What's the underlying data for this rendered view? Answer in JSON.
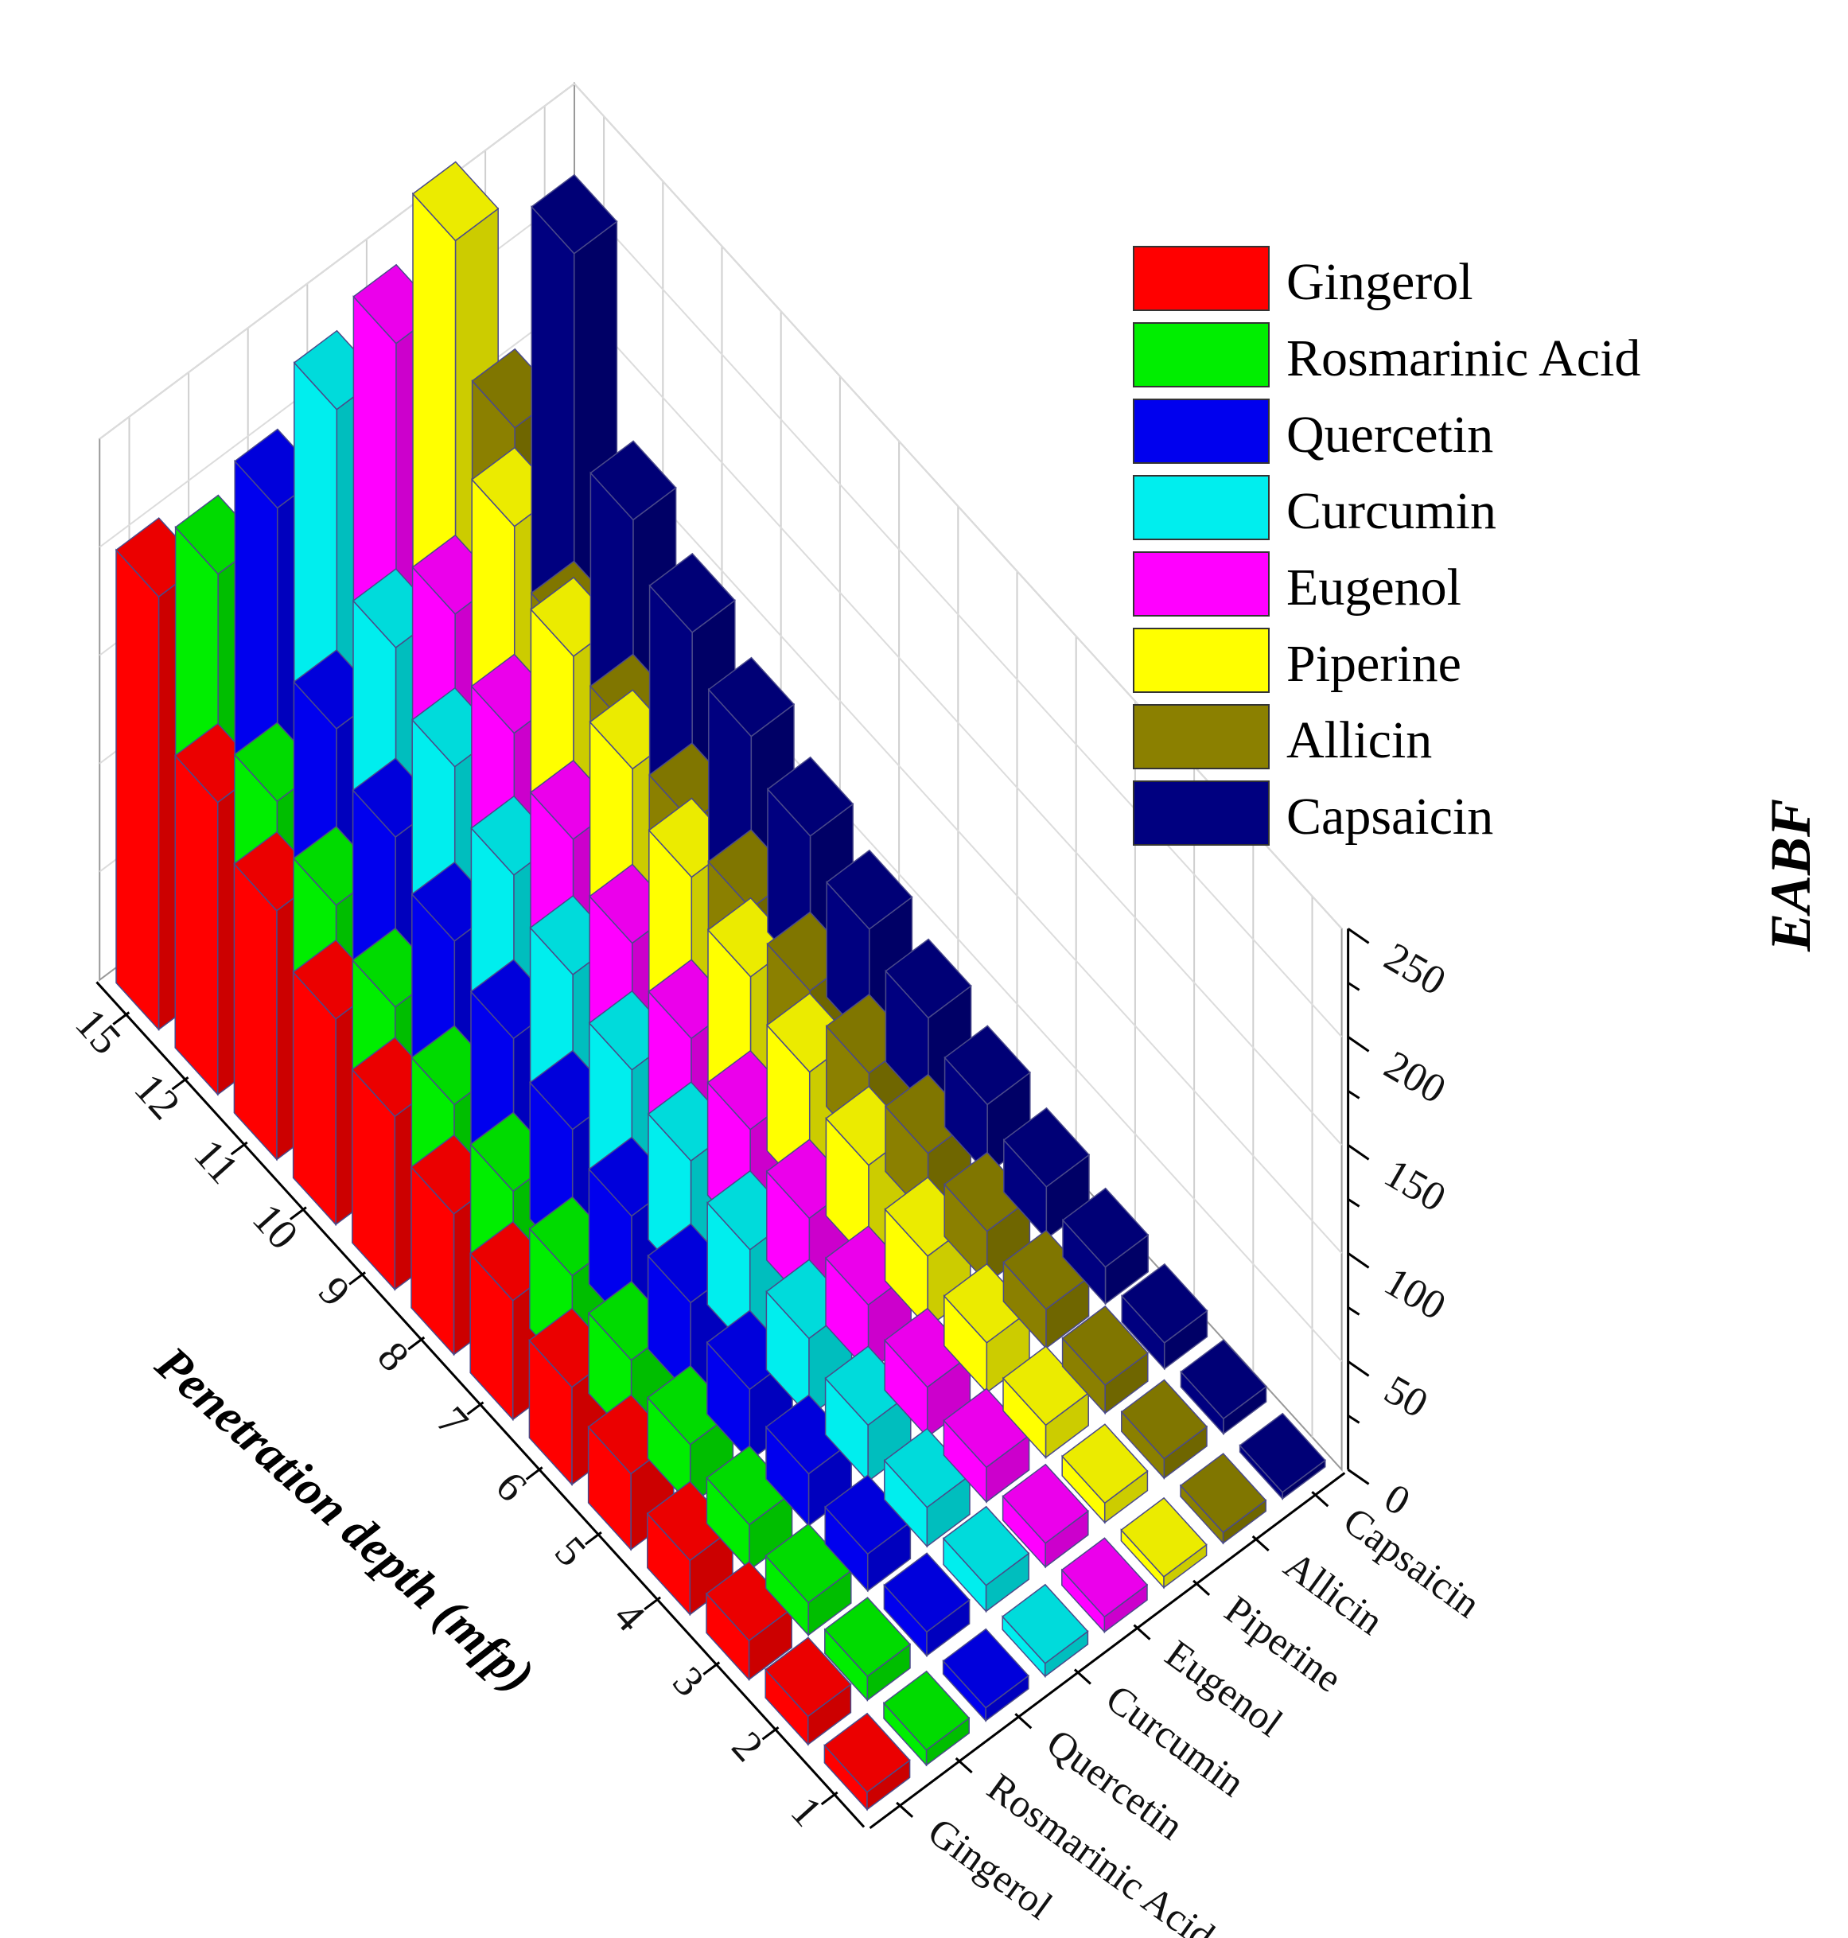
{
  "chart_data": {
    "type": "bar3d",
    "title": "",
    "xlabel": "Penetration depth (mfp)",
    "ylabel": "",
    "zlabel": "EABF",
    "depths": [
      1,
      2,
      3,
      4,
      5,
      6,
      7,
      8,
      9,
      10,
      11,
      12,
      15
    ],
    "zlim": [
      0,
      250
    ],
    "zticks": [
      0,
      50,
      100,
      150,
      200,
      250
    ],
    "series": [
      {
        "name": "Gingerol",
        "color": "#ff0000",
        "values": [
          8,
          13,
          18,
          25,
          35,
          45,
          55,
          65,
          80,
          95,
          115,
          135,
          200
        ]
      },
      {
        "name": "Rosmarinic Acid",
        "color": "#00ee00",
        "values": [
          7,
          11,
          15,
          21,
          28,
          37,
          46,
          55,
          65,
          80,
          97,
          115,
          190
        ]
      },
      {
        "name": "Quercetin",
        "color": "#0000ee",
        "values": [
          6,
          11,
          17,
          24,
          33,
          43,
          53,
          63,
          75,
          90,
          108,
          128,
          200
        ]
      },
      {
        "name": "Curcumin",
        "color": "#00eeee",
        "values": [
          6,
          12,
          18,
          26,
          36,
          47,
          58,
          70,
          84,
          100,
          120,
          145,
          225
        ]
      },
      {
        "name": "Eugenol",
        "color": "#ff00ff",
        "values": [
          7,
          11,
          16,
          23,
          31,
          41,
          52,
          64,
          78,
          96,
          115,
          140,
          235
        ]
      },
      {
        "name": "Piperine",
        "color": "#ffff00",
        "values": [
          5,
          9,
          15,
          23,
          33,
          45,
          58,
          72,
          88,
          108,
          130,
          160,
          262
        ]
      },
      {
        "name": "Allicin",
        "color": "#8b8000",
        "values": [
          5,
          9,
          13,
          18,
          24,
          30,
          37,
          45,
          53,
          63,
          74,
          87,
          155
        ]
      },
      {
        "name": "Capsaicin",
        "color": "#000080",
        "values": [
          3,
          7,
          12,
          17,
          24,
          32,
          42,
          53,
          66,
          82,
          100,
          122,
          215
        ]
      }
    ],
    "legend": {
      "position": "top-right",
      "entries": [
        "Gingerol",
        "Rosmarinic Acid",
        "Quercetin",
        "Curcumin",
        "Eugenol",
        "Piperine",
        "Allicin",
        "Capsaicin"
      ]
    }
  }
}
